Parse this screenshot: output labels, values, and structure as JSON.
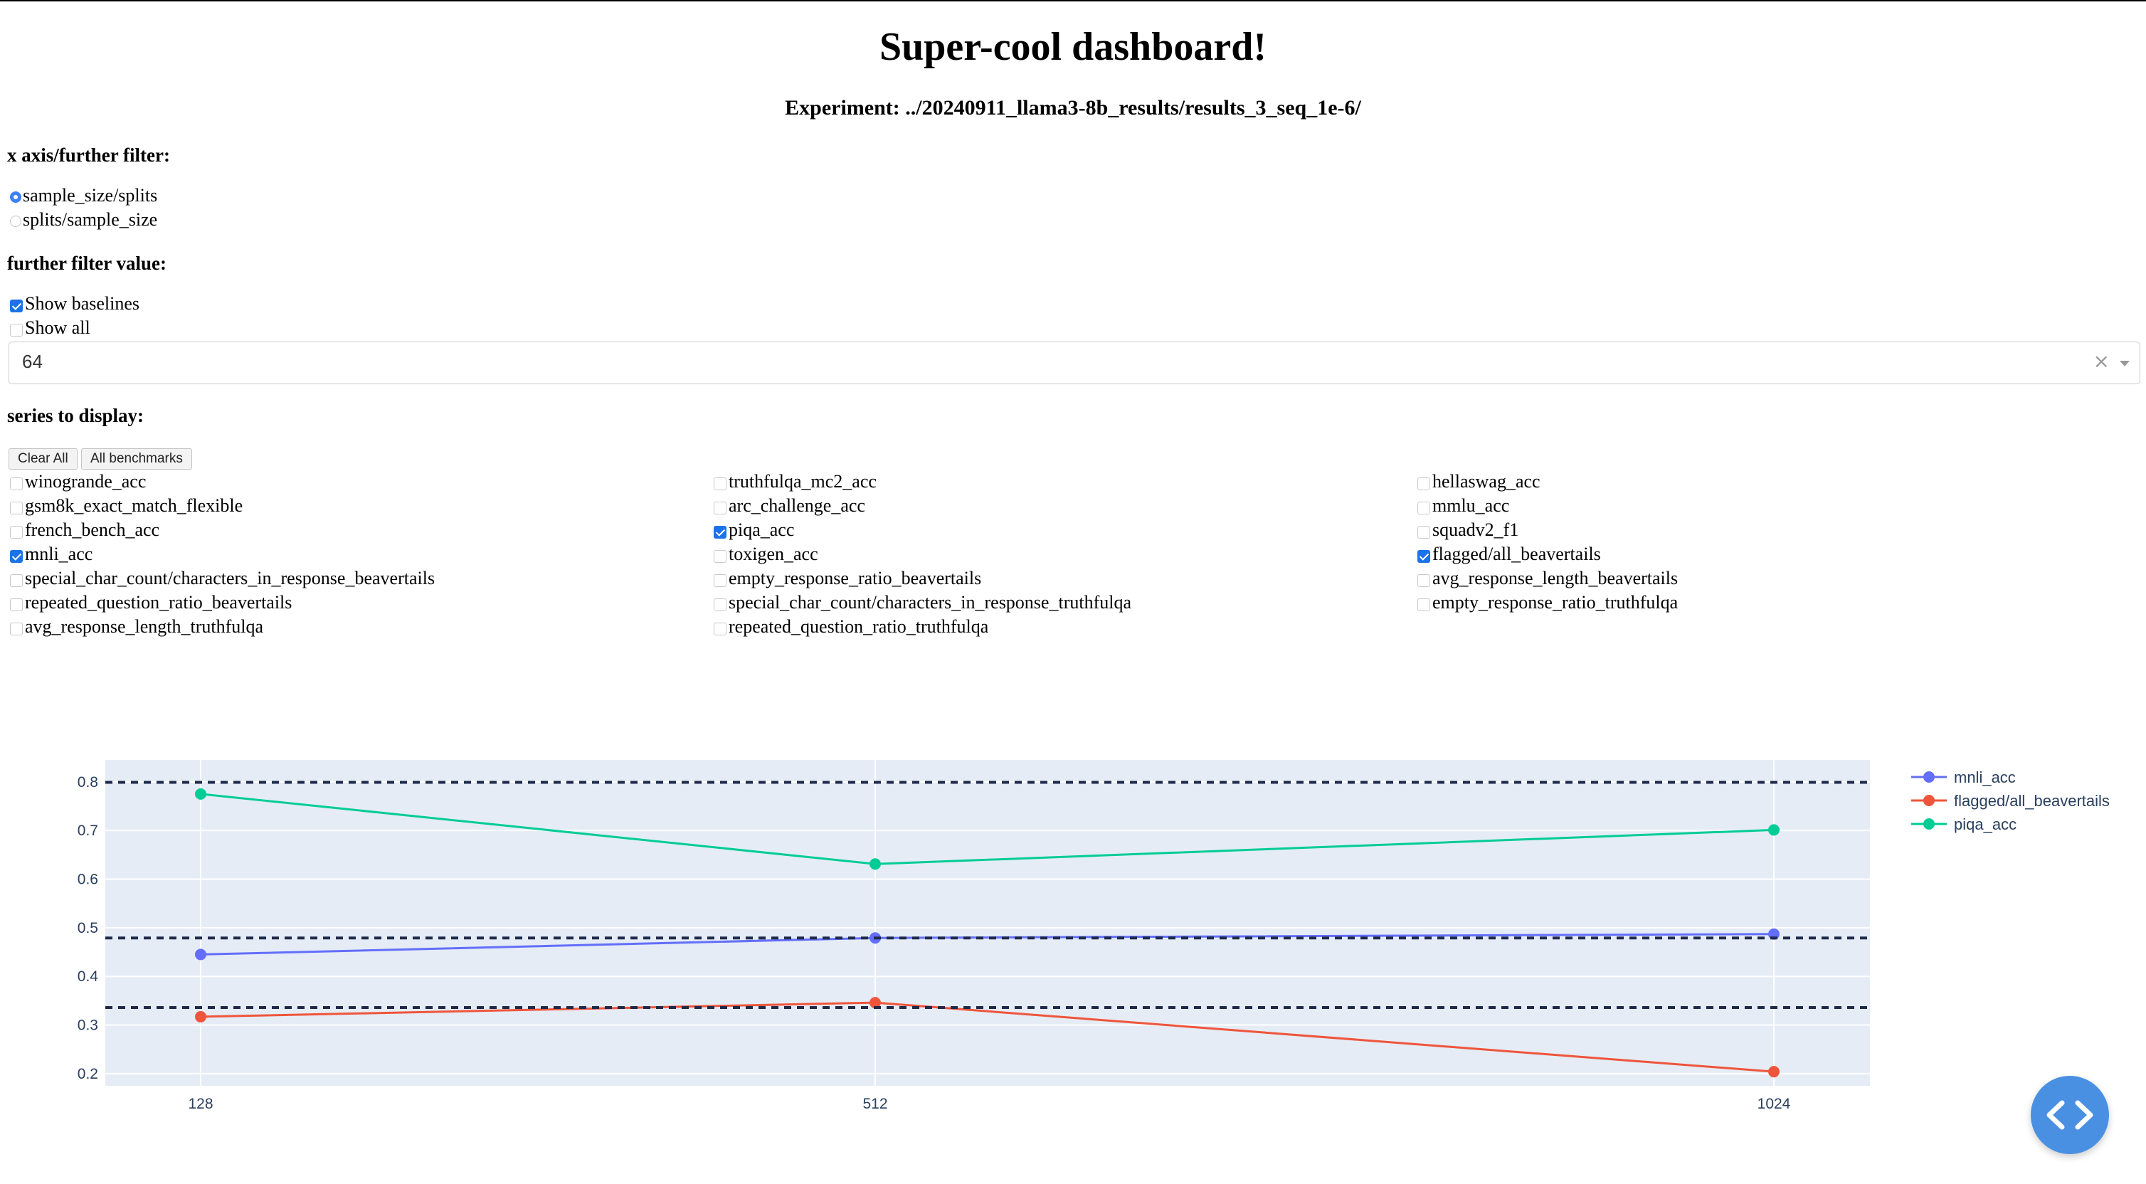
{
  "header": {
    "title": "Super-cool dashboard!",
    "experiment": "Experiment: ../20240911_llama3-8b_results/results_3_seq_1e-6/"
  },
  "x_axis_filter": {
    "label": "x axis/further filter:",
    "options": [
      {
        "label": "sample_size/splits",
        "selected": true
      },
      {
        "label": "splits/sample_size",
        "selected": false
      }
    ]
  },
  "further_filter": {
    "label": "further filter value:",
    "show_baselines": {
      "label": "Show baselines",
      "checked": true
    },
    "show_all": {
      "label": "Show all",
      "checked": false
    },
    "select_value": "64",
    "clear_glyph": "×"
  },
  "series_section": {
    "label": "series to display:",
    "clear_all_label": "Clear All",
    "all_benchmarks_label": "All benchmarks",
    "items": [
      {
        "label": "winogrande_acc",
        "checked": false
      },
      {
        "label": "truthfulqa_mc2_acc",
        "checked": false
      },
      {
        "label": "hellaswag_acc",
        "checked": false
      },
      {
        "label": "gsm8k_exact_match_flexible",
        "checked": false
      },
      {
        "label": "arc_challenge_acc",
        "checked": false
      },
      {
        "label": "mmlu_acc",
        "checked": false
      },
      {
        "label": "french_bench_acc",
        "checked": false
      },
      {
        "label": "piqa_acc",
        "checked": true
      },
      {
        "label": "squadv2_f1",
        "checked": false
      },
      {
        "label": "mnli_acc",
        "checked": true
      },
      {
        "label": "toxigen_acc",
        "checked": false
      },
      {
        "label": "flagged/all_beavertails",
        "checked": true
      },
      {
        "label": "special_char_count/characters_in_response_beavertails",
        "checked": false
      },
      {
        "label": "empty_response_ratio_beavertails",
        "checked": false
      },
      {
        "label": "avg_response_length_beavertails",
        "checked": false
      },
      {
        "label": "repeated_question_ratio_beavertails",
        "checked": false
      },
      {
        "label": "special_char_count/characters_in_response_truthfulqa",
        "checked": false
      },
      {
        "label": "empty_response_ratio_truthfulqa",
        "checked": false
      },
      {
        "label": "avg_response_length_truthfulqa",
        "checked": false
      },
      {
        "label": "repeated_question_ratio_truthfulqa",
        "checked": false
      }
    ]
  },
  "chart_data": {
    "type": "line",
    "title": "",
    "xlabel": "",
    "ylabel": "",
    "categories": [
      "128",
      "512",
      "1024"
    ],
    "x": [
      128,
      512,
      1024
    ],
    "ylim": [
      0.175,
      0.845
    ],
    "yticks": [
      0.2,
      0.3,
      0.4,
      0.5,
      0.6,
      0.7,
      0.8
    ],
    "grid": true,
    "legend_position": "right",
    "series": [
      {
        "name": "mnli_acc",
        "color": "#636efa",
        "values": [
          0.445,
          0.479,
          0.487
        ]
      },
      {
        "name": "flagged/all_beavertails",
        "color": "#ef553b",
        "values": [
          0.317,
          0.346,
          0.204
        ]
      },
      {
        "name": "piqa_acc",
        "color": "#00cc96",
        "values": [
          0.775,
          0.631,
          0.701
        ]
      }
    ],
    "baselines": [
      {
        "value": 0.799,
        "color": "#1f2a4a"
      },
      {
        "value": 0.479,
        "color": "#1f2a4a"
      },
      {
        "value": 0.336,
        "color": "#1f2a4a"
      }
    ]
  },
  "colors": {
    "accent": "#1a73e8",
    "plot_bg": "#e5ecf6",
    "fab": "#4a90e2"
  },
  "fab_icon": "code-brackets-icon"
}
